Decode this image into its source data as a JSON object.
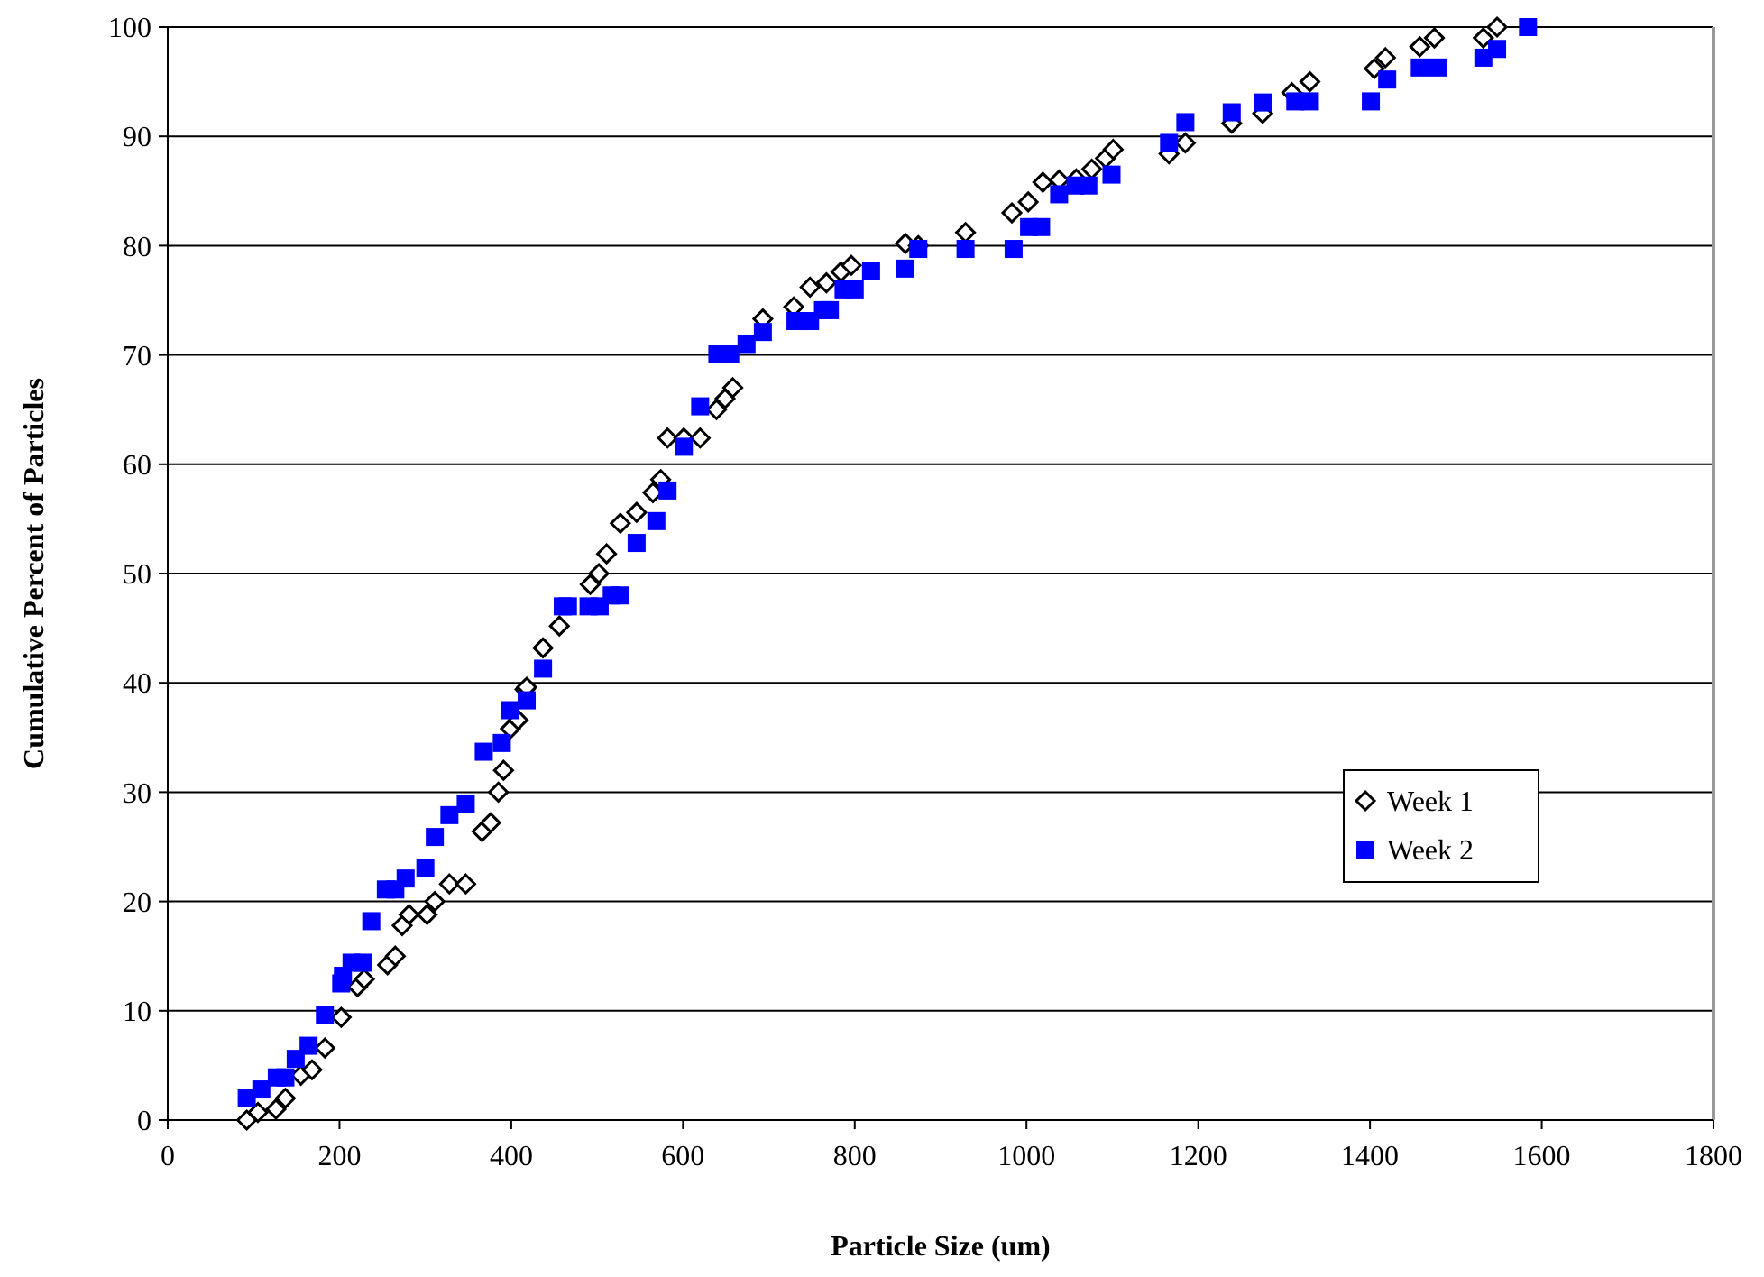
{
  "chart_data": {
    "type": "scatter",
    "xlabel": "Particle Size (um)",
    "ylabel": "Cumulative Percent of Particles",
    "xlim": [
      0,
      1800
    ],
    "xticks": [
      0,
      200,
      400,
      600,
      800,
      1000,
      1200,
      1400,
      1600,
      1800
    ],
    "ylim": [
      0,
      100
    ],
    "yticks": [
      0,
      10,
      20,
      30,
      40,
      50,
      60,
      70,
      80,
      90,
      100
    ],
    "grid": "y",
    "legend": "right",
    "series": [
      {
        "name": "Week 1",
        "color": "#000000",
        "marker": "diamond",
        "x": [
          92,
          105,
          126,
          137,
          155,
          168,
          183,
          202,
          221,
          229,
          256,
          265,
          273,
          281,
          302,
          311,
          328,
          347,
          366,
          376,
          385,
          391,
          399,
          408,
          416,
          418,
          437,
          456,
          492,
          502,
          511,
          527,
          546,
          565,
          574,
          582,
          601,
          620,
          639,
          649,
          658,
          693,
          729,
          748,
          767,
          784,
          796,
          859,
          874,
          929,
          983,
          1002,
          1019,
          1038,
          1058,
          1076,
          1092,
          1101,
          1166,
          1185,
          1239,
          1275,
          1309,
          1330,
          1405,
          1418,
          1458,
          1475,
          1532,
          1548
        ],
        "values": [
          0,
          0.7,
          1,
          2,
          4.1,
          4.6,
          6.6,
          9.4,
          12.2,
          12.9,
          14.2,
          15,
          17.8,
          18.8,
          18.8,
          20,
          21.6,
          21.6,
          26.4,
          27.2,
          30,
          32,
          35.8,
          36.6,
          39.4,
          39.6,
          43.2,
          45.2,
          49,
          50,
          51.8,
          54.6,
          55.6,
          57.4,
          58.6,
          62.4,
          62.4,
          62.4,
          65,
          66,
          67,
          73.3,
          74.4,
          76.2,
          76.6,
          77.6,
          78.2,
          80.2,
          80,
          81.2,
          83,
          84,
          85.8,
          86,
          86.1,
          87,
          88,
          88.8,
          88.4,
          89.4,
          91.2,
          92.1,
          94,
          95,
          96.2,
          97.2,
          98.2,
          99,
          99,
          100
        ]
      },
      {
        "name": "Week 2",
        "color": "#0000ff",
        "marker": "square",
        "x": [
          92,
          109,
          127,
          137,
          149,
          164,
          183,
          202,
          204,
          214,
          227,
          237,
          254,
          265,
          277,
          300,
          311,
          328,
          347,
          368,
          389,
          399,
          418,
          437,
          460,
          466,
          490,
          503,
          517,
          527,
          546,
          569,
          582,
          601,
          620,
          640,
          647,
          655,
          674,
          693,
          731,
          748,
          763,
          771,
          787,
          800,
          819,
          859,
          874,
          929,
          985,
          1003,
          1017,
          1038,
          1057,
          1072,
          1099,
          1166,
          1185,
          1239,
          1275,
          1313,
          1330,
          1401,
          1420,
          1458,
          1479,
          1532,
          1548,
          1584
        ],
        "values": [
          2,
          2.8,
          3.9,
          3.9,
          5.6,
          6.8,
          9.6,
          12.5,
          13.2,
          14.4,
          14.4,
          18.2,
          21.1,
          21.1,
          22.1,
          23.1,
          25.9,
          27.9,
          28.9,
          33.7,
          34.5,
          37.5,
          38.4,
          41.3,
          47,
          47,
          47,
          47,
          48,
          48,
          52.8,
          54.8,
          57.6,
          61.6,
          65.3,
          70.1,
          70.1,
          70.1,
          71,
          72.1,
          73.1,
          73.1,
          74.1,
          74.1,
          76,
          76,
          77.7,
          77.9,
          79.7,
          79.7,
          79.7,
          81.7,
          81.7,
          84.7,
          85.5,
          85.5,
          86.5,
          89.4,
          91.3,
          92.2,
          93.1,
          93.2,
          93.2,
          93.2,
          95.2,
          96.3,
          96.3,
          97.2,
          98,
          100
        ]
      }
    ]
  }
}
